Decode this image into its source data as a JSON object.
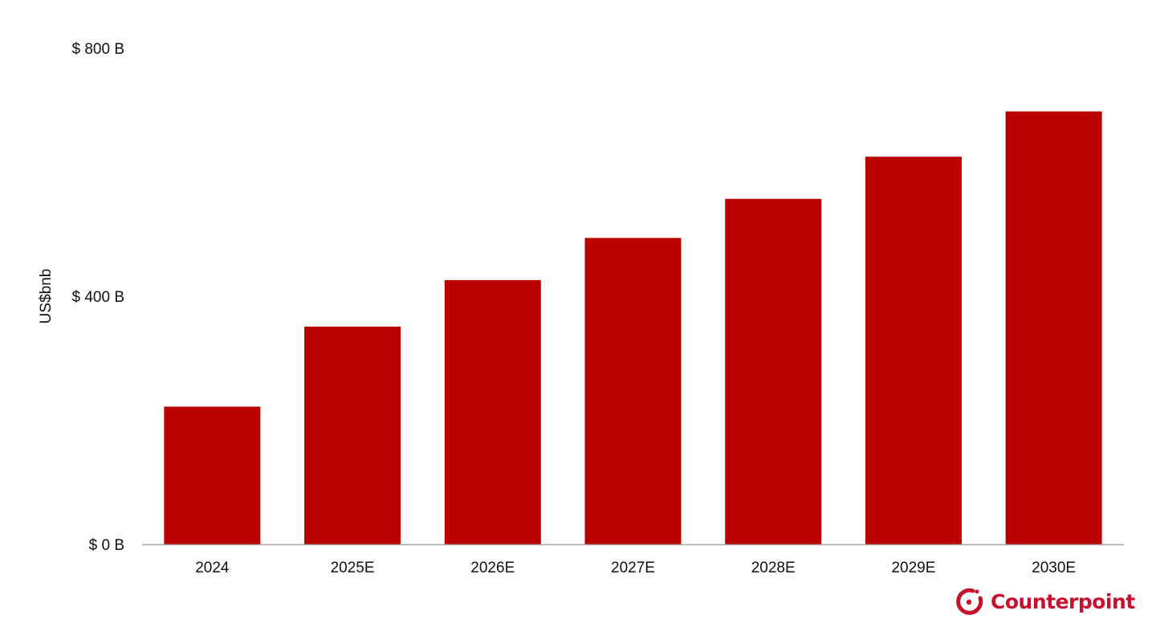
{
  "chart_data": {
    "type": "bar",
    "title": "",
    "xlabel": "",
    "ylabel": "US$bnb",
    "categories": [
      "2024",
      "2025E",
      "2026E",
      "2027E",
      "2028E",
      "2029E",
      "2030E"
    ],
    "values": [
      222,
      351,
      426,
      494,
      557,
      625,
      698
    ],
    "ylim": [
      0,
      800
    ],
    "yticks": [
      0,
      400,
      800
    ],
    "ytick_labels": [
      "$ 0 B",
      "$ 400 B",
      "$ 800 B"
    ],
    "grid": false,
    "bar_color": "#bb0000",
    "axis_color": "#a6a6a6"
  },
  "logo": {
    "text": "Counterpoint",
    "color": "#c8102e"
  }
}
